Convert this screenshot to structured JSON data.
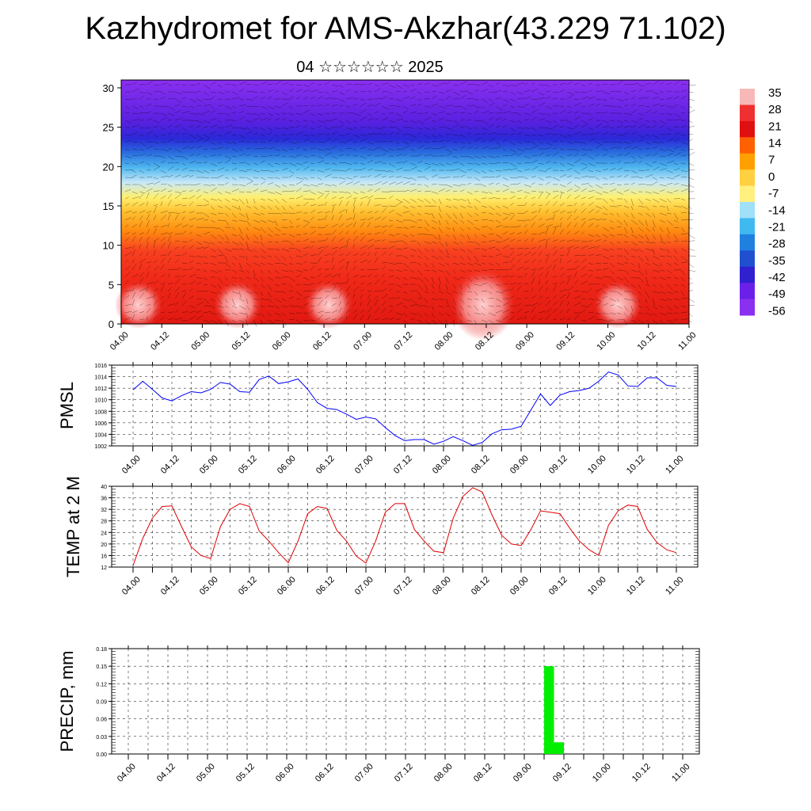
{
  "title": "Kazhydromet for AMS-Akzhar(43.229 71.102)",
  "subtitle": "04 ☆☆☆☆☆☆ 2025",
  "colorbar": {
    "labels": [
      "35",
      "28",
      "21",
      "14",
      "7",
      "0",
      "-7",
      "-14",
      "-21",
      "-28",
      "-35",
      "-42",
      "-49",
      "-56"
    ],
    "colors": [
      "#f8b8b8",
      "#f03030",
      "#e01010",
      "#ff6000",
      "#ffa000",
      "#ffd040",
      "#fff080",
      "#a0e0f8",
      "#40b8f0",
      "#2080e0",
      "#2050d0",
      "#3020d0",
      "#6a20e8",
      "#8a30f0"
    ]
  },
  "chart_data": [
    {
      "type": "heatmap",
      "name": "cross-section",
      "x_ticks": [
        "04.00",
        "04.12",
        "05.00",
        "05.12",
        "06.00",
        "06.12",
        "07.00",
        "07.12",
        "08.00",
        "08.12",
        "09.00",
        "09.12",
        "10.00",
        "10.12",
        "11.00"
      ],
      "y_ticks": [
        0,
        5,
        10,
        15,
        20,
        25,
        30
      ],
      "ylim": [
        0,
        31
      ],
      "value_range": [
        -56,
        35
      ]
    },
    {
      "type": "line",
      "ylabel": "PMSL",
      "ylim": [
        1002,
        1016
      ],
      "y_ticks": [
        1002,
        1004,
        1006,
        1008,
        1010,
        1012,
        1014,
        1016
      ],
      "x_ticks": [
        "04.00",
        "04.12",
        "05.00",
        "05.12",
        "06.00",
        "06.12",
        "07.00",
        "07.12",
        "08.00",
        "08.12",
        "09.00",
        "09.12",
        "10.00",
        "10.12",
        "11.00"
      ],
      "color": "#0000ff",
      "values": [
        1011.7,
        1013.2,
        1011.8,
        1010.3,
        1009.8,
        1010.7,
        1011.4,
        1011.2,
        1011.8,
        1013,
        1012.7,
        1011.4,
        1011.3,
        1013.5,
        1014.1,
        1012.8,
        1013.1,
        1013.6,
        1011.8,
        1009.5,
        1008.5,
        1008.3,
        1007.5,
        1006.6,
        1007,
        1006.7,
        1005.2,
        1003.8,
        1002.9,
        1003.1,
        1003.1,
        1002.3,
        1002.8,
        1003.6,
        1002.9,
        1002.1,
        1002.6,
        1004.1,
        1004.8,
        1004.9,
        1005.4,
        1008.2,
        1011,
        1009,
        1010.8,
        1011.4,
        1011.6,
        1012,
        1013.2,
        1014.8,
        1014.3,
        1012.4,
        1012.3,
        1013.8,
        1013.8,
        1012.5,
        1012.3
      ]
    },
    {
      "type": "line",
      "ylabel": "TEMP at 2 M",
      "ylim": [
        12,
        40
      ],
      "y_ticks": [
        12,
        16,
        20,
        24,
        28,
        32,
        36,
        40
      ],
      "x_ticks": [
        "04.00",
        "04.12",
        "05.00",
        "05.12",
        "06.00",
        "06.12",
        "07.00",
        "07.12",
        "08.00",
        "08.12",
        "09.00",
        "09.12",
        "10.00",
        "10.12",
        "11.00"
      ],
      "color": "#e00000",
      "values": [
        12.5,
        22,
        29,
        33,
        33.2,
        26,
        19,
        16,
        15,
        26,
        32,
        34,
        33,
        24.5,
        21,
        17,
        13.5,
        21,
        30.5,
        33,
        32.3,
        24.7,
        21,
        15.8,
        13.4,
        21,
        31,
        34,
        34,
        25,
        21,
        17.5,
        17,
        29,
        36.5,
        39.5,
        38,
        30,
        23,
        20,
        19.5,
        25,
        31.5,
        31,
        30.5,
        25.5,
        21,
        18,
        16,
        26.5,
        31.5,
        33.5,
        33,
        25,
        20.5,
        18,
        17
      ]
    },
    {
      "type": "bar",
      "ylabel": "PRECIP, mm",
      "ylim": [
        0,
        0.18
      ],
      "y_ticks": [
        "0.00",
        "0.03",
        "0.06",
        "0.09",
        "0.12",
        "0.15",
        "0.18"
      ],
      "x_ticks": [
        "04.00",
        "04.12",
        "05.00",
        "05.12",
        "06.00",
        "06.12",
        "07.00",
        "07.12",
        "08.00",
        "08.12",
        "09.00",
        "09.12",
        "10.00",
        "10.12",
        "11.00"
      ],
      "color": "#00ee00",
      "bars": [
        {
          "start_hour": 126,
          "end_hour": 129,
          "value": 0.15
        },
        {
          "start_hour": 129,
          "end_hour": 132,
          "value": 0.02
        }
      ]
    }
  ]
}
